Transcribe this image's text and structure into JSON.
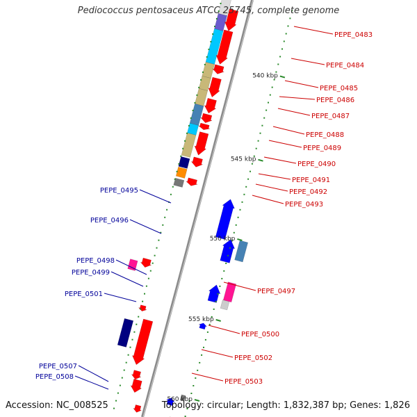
{
  "title": "Pediococcus pentosaceus ATCC 25745, complete genome",
  "accession_text": "Accession: NC_008525",
  "topology_text": "Topology: circular; Length: 1,832,387 bp; Genes: 1,826",
  "colors": {
    "forward_label": "#cc0000",
    "reverse_label": "#000099",
    "backbone": "#8a8a8a",
    "ticks": "#2a8a2a",
    "red": "#ff0000",
    "blue": "#0000ff",
    "navy": "#000080",
    "cyan": "#00c8ff",
    "khaki": "#c8b878",
    "steel": "#4682b4",
    "magenta": "#ff1493",
    "orange": "#ff8c00",
    "grey": "#777777"
  },
  "scale_labels": [
    {
      "kbp": 540,
      "label": "540 kbp"
    },
    {
      "kbp": 545,
      "label": "545 kbp"
    },
    {
      "kbp": 550,
      "label": "550 kbp"
    },
    {
      "kbp": 555,
      "label": "555 kbp"
    },
    {
      "kbp": 560,
      "label": "560 kbp"
    }
  ],
  "gene_labels_forward": [
    "PEPE_0483",
    "PEPE_0484",
    "PEPE_0485",
    "PEPE_0486",
    "PEPE_0487",
    "PEPE_0488",
    "PEPE_0489",
    "PEPE_0490",
    "PEPE_0491",
    "PEPE_0492",
    "PEPE_0493",
    "PEPE_0497",
    "PEPE_0500",
    "PEPE_0502",
    "PEPE_0503"
  ],
  "gene_labels_reverse": [
    "PEPE_0495",
    "PEPE_0496",
    "PEPE_0498",
    "PEPE_0499",
    "PEPE_0501",
    "PEPE_0507",
    "PEPE_0508"
  ]
}
